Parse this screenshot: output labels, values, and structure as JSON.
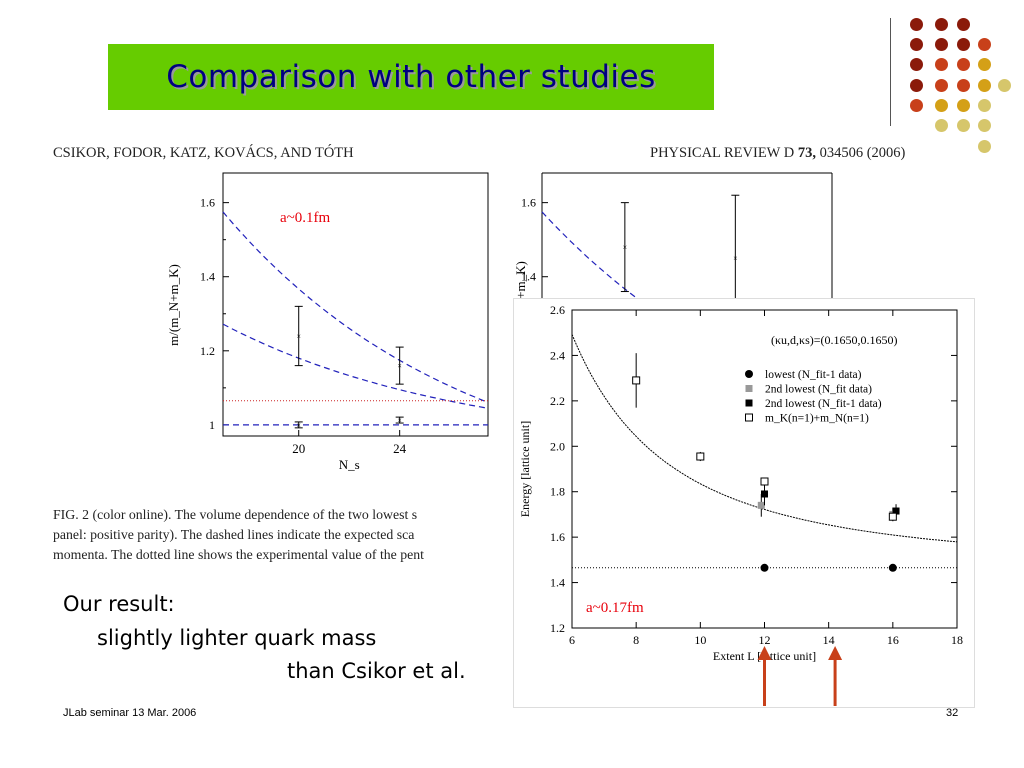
{
  "slide": {
    "title": "Comparison with other studies",
    "paper_header_left": "CSIKOR, FODOR, KATZ, KOVÁCS, AND TÓTH",
    "paper_header_right_pre": "PHYSICAL REVIEW D ",
    "paper_header_right_vol": "73,",
    "paper_header_right_post": " 034506 (2006)",
    "caption_line1": "FIG. 2 (color online).    The volume dependence of the two lowest s",
    "caption_line2": "panel: positive parity). The dashed lines indicate the expected sca",
    "caption_line3": "momenta. The dotted line shows the experimental value of the pent",
    "result_line1": "Our result:",
    "result_line2": "slightly lighter quark mass",
    "result_line3": "than Csikor et al.",
    "footer_left": "JLab seminar 13 Mar. 2006",
    "footer_right": "32",
    "colors": {
      "title_bg": "#66cc00",
      "title_text": "#000080",
      "annotation": "#e8000b",
      "arrow": "#c8401a"
    },
    "decor_dots": [
      "#8b1a0a",
      "#8b1a0a",
      "#8b1a0a",
      "#8b1a0a",
      "#8b1a0a",
      "#8b1a0a",
      "#c8401a",
      "#8b1a0a",
      "#c8401a",
      "#c8401a",
      "#d4a017",
      "#8b1a0a",
      "#c8401a",
      "#c8401a",
      "#d4a017",
      "#d6c66b",
      "#c8401a",
      "#d4a017",
      "#d4a017",
      "#d6c66b",
      "#d6c66b",
      "#d6c66b",
      "#d6c66b",
      "#d6c66b"
    ]
  },
  "chart_data": [
    {
      "type": "scatter",
      "title": "",
      "annotation": "a~0.1fm",
      "xlabel": "N_s",
      "ylabel": "m/(m_N+m_K)",
      "xlim": [
        17,
        27.5
      ],
      "ylim": [
        0.97,
        1.68
      ],
      "xticks": [
        20,
        24
      ],
      "yticks": [
        1,
        1.2,
        1.4,
        1.6
      ],
      "ytick_labels": [
        "1",
        "1.2",
        "1.4",
        "1.6"
      ],
      "points": [
        {
          "x": 20,
          "y": 1.24,
          "err": 0.08
        },
        {
          "x": 24,
          "y": 1.16,
          "err": 0.05
        },
        {
          "x": 20,
          "y": 1.0,
          "err": 0.008
        },
        {
          "x": 24,
          "y": 1.013,
          "err": 0.008
        }
      ],
      "dashed_curves": [
        {
          "A": 0.19,
          "B": 0.77
        },
        {
          "A": 0.102,
          "B": 0.34
        },
        {
          "A": 0.0,
          "B": 0.0
        }
      ],
      "dotted_line_y": 1.065,
      "grid": false
    },
    {
      "type": "scatter",
      "title": "",
      "xlabel": "",
      "ylabel": "+m_K)",
      "xlim": [
        17,
        27.5
      ],
      "ylim": [
        0.97,
        1.68
      ],
      "yticks": [
        1.4,
        1.6
      ],
      "ytick_labels": [
        "1.4",
        "1.6"
      ],
      "points": [
        {
          "x": 20,
          "y": 1.48,
          "err": 0.12
        },
        {
          "x": 24,
          "y": 1.45,
          "err": 0.17
        }
      ],
      "dashed_curves": [
        {
          "A": 0.19,
          "B": 0.77
        }
      ],
      "grid": false
    },
    {
      "type": "scatter",
      "title": "",
      "annotation": "a~0.17fm",
      "legend_title": "(κu,d,κs)=(0.1650,0.1650)",
      "xlabel": "Extent  L [lattice unit]",
      "ylabel": "Energy [lattice unit]",
      "xlim": [
        6,
        18
      ],
      "ylim": [
        1.2,
        2.6
      ],
      "xticks": [
        6,
        8,
        10,
        12,
        14,
        16,
        18
      ],
      "yticks": [
        1.2,
        1.4,
        1.6,
        1.8,
        2.0,
        2.2,
        2.4,
        2.6
      ],
      "ytick_labels": [
        "1.2",
        "1.4",
        "1.6",
        "1.8",
        "2.0",
        "2.2",
        "2.4",
        "2.6"
      ],
      "series": [
        {
          "name": "lowest (N_fit-1 data)",
          "marker": "circle",
          "points": [
            {
              "x": 12,
              "y": 1.465,
              "err": 0
            },
            {
              "x": 16,
              "y": 1.465,
              "err": 0
            }
          ]
        },
        {
          "name": "2nd lowest (N_fit data)",
          "marker": "gray-square",
          "points": [
            {
              "x": 11.9,
              "y": 1.74,
              "err": 0.05
            },
            {
              "x": 16,
              "y": 1.7,
              "err": 0.03
            }
          ]
        },
        {
          "name": "2nd lowest (N_fit-1 data)",
          "marker": "black-square",
          "points": [
            {
              "x": 12,
              "y": 1.79,
              "err": 0.05
            },
            {
              "x": 16.1,
              "y": 1.715,
              "err": 0.03
            }
          ]
        },
        {
          "name": "m_K(n=1)+m_N(n=1)",
          "marker": "open-square",
          "points": [
            {
              "x": 8,
              "y": 2.29,
              "err": 0.12
            },
            {
              "x": 10,
              "y": 1.955,
              "err": 0.02
            },
            {
              "x": 12,
              "y": 1.845,
              "err": 0.01
            },
            {
              "x": 16,
              "y": 1.69,
              "err": 0.01
            }
          ]
        }
      ],
      "curve": {
        "A": 1.465,
        "B": 37.0
      },
      "threshold_line_y": 1.465,
      "arrows_at_x": [
        12,
        14.2
      ],
      "grid": false
    }
  ]
}
